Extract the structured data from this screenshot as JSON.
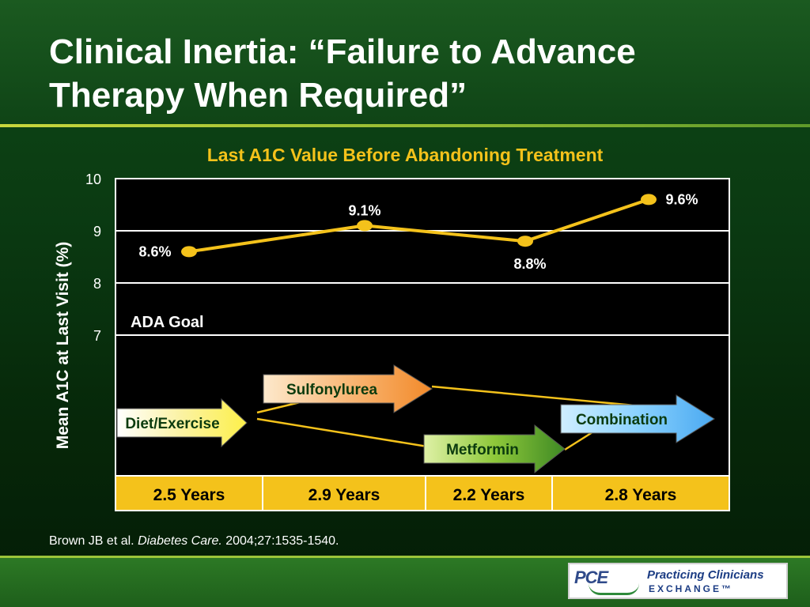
{
  "slide": {
    "title": "Clinical Inertia: “Failure to Advance Therapy When Required”",
    "citation_authors": "Brown JB et al.",
    "citation_journal": "Diabetes Care.",
    "citation_ref": "2004;27:1535-1540.",
    "logo_mark": "PCE",
    "logo_line1": "Practicing Clinicians",
    "logo_line2": "EXCHANGE™"
  },
  "colors": {
    "line": "#f4c21b",
    "bar": "#f4c21b",
    "chart_title": "#f4c21b",
    "gridline": "#ffffff",
    "background": "#000000"
  },
  "chart_data": {
    "type": "line",
    "title": "Last A1C Value Before Abandoning Treatment",
    "ylabel": "Mean A1C at Last Visit (%)",
    "ylim": [
      6.2,
      10
    ],
    "yticks": [
      7,
      8,
      9,
      10
    ],
    "grid": true,
    "annotation_goal": "ADA Goal",
    "x": [
      "Diet/Exercise",
      "Sulfonylurea",
      "Metformin",
      "Combination"
    ],
    "series": [
      {
        "values": [
          8.6,
          9.1,
          8.8,
          9.6
        ],
        "labels": [
          "8.6%",
          "9.1%",
          "8.8%",
          "9.6%"
        ]
      }
    ],
    "therapies": [
      {
        "label": "Diet/Exercise",
        "gradient": [
          "#ffffff",
          "#fbf2a2",
          "#fdf04a"
        ]
      },
      {
        "label": "Sulfonylurea",
        "gradient": [
          "#fde9cc",
          "#f9b877",
          "#f28a2a"
        ]
      },
      {
        "label": "Metformin",
        "gradient": [
          "#dff1a6",
          "#8ec83a",
          "#3f8a24"
        ]
      },
      {
        "label": "Combination",
        "gradient": [
          "#cfeeff",
          "#8ad2ff",
          "#4aa9f0"
        ]
      }
    ],
    "durations": [
      "2.5 Years",
      "2.9 Years",
      "2.2 Years",
      "2.8 Years"
    ]
  }
}
